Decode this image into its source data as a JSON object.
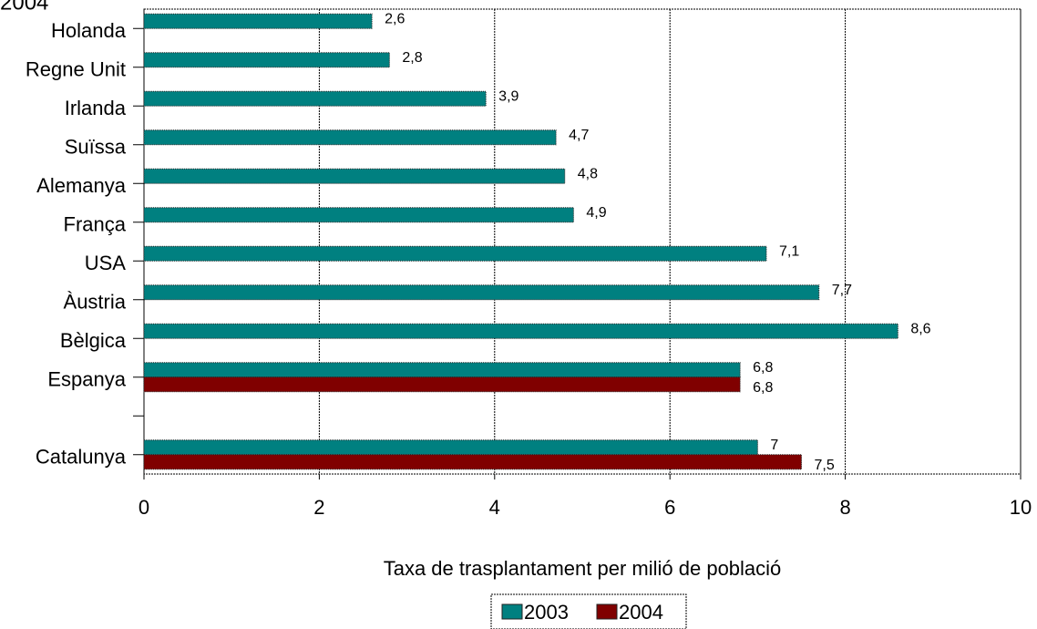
{
  "chart_data": {
    "type": "bar",
    "orientation": "horizontal",
    "title": "2004",
    "categories": [
      "Holanda",
      "Regne Unit",
      "Irlanda",
      "Suïssa",
      "Alemanya",
      "França",
      "USA",
      "Àustria",
      "Bèlgica",
      "Espanya",
      null,
      "Catalunya"
    ],
    "series": [
      {
        "name": "2003",
        "color": "#008080",
        "values": [
          2.6,
          2.8,
          3.9,
          4.7,
          4.8,
          4.9,
          7.1,
          7.7,
          8.6,
          6.8,
          null,
          7
        ],
        "value_labels": [
          "2,6",
          "2,8",
          "3,9",
          "4,7",
          "4,8",
          "4,9",
          "7,1",
          "7,7",
          "8,6",
          "6,8",
          null,
          "7"
        ]
      },
      {
        "name": "2004",
        "color": "#800000",
        "values": [
          null,
          null,
          null,
          null,
          null,
          null,
          null,
          null,
          null,
          6.8,
          null,
          7.5
        ],
        "value_labels": [
          null,
          null,
          null,
          null,
          null,
          null,
          null,
          null,
          null,
          "6,8",
          null,
          "7,5"
        ]
      }
    ],
    "xlabel": "Taxa de trasplantament per milió de població",
    "xlim": [
      0,
      10
    ],
    "xticks": [
      0,
      2,
      4,
      6,
      8,
      10
    ],
    "grid": true,
    "legend": "bottom"
  }
}
